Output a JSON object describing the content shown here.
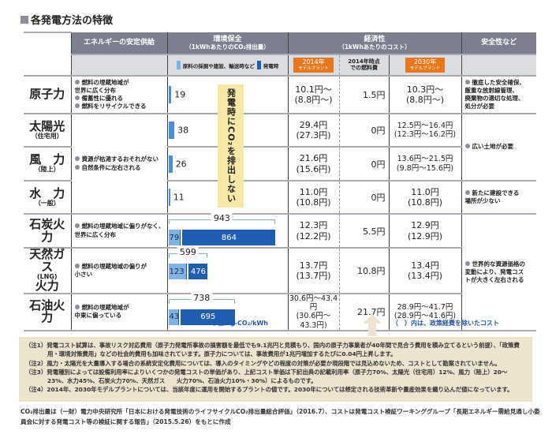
{
  "title": "各発電方法の特徴",
  "headers": {
    "supply": "エネルギーの安定供給",
    "env": "環境保全",
    "env_sub": "（1kWhあたりのCO₂排出量）",
    "econ": "経済性",
    "econ_sub": "（1kWhあたりのコスト）",
    "safety": "安全性など",
    "legend_light": "原料の採掘や建設、輸送時など",
    "legend_dark": "発電時",
    "badge2014": "2014年",
    "badge2014_sub": "モデルプラント",
    "fuel": "2014年時点\nでの燃料費",
    "badge2030": "2030年",
    "badge2030_sub": "モデルプラント"
  },
  "colors": {
    "header": "#7b7f8e",
    "bar_light": "#7fb3e6",
    "bar_dark": "#1f5fb3",
    "badge": "#e8761a",
    "highlight": "#f6e9a6",
    "notes_bg": "#ede3cf"
  },
  "rows": [
    {
      "name": "原子力",
      "sub": "",
      "co2": 19,
      "c2014": "10.1円～",
      "c2014p": "(8.8円～)",
      "fuel": "1.5円",
      "c2030": "10.3円～",
      "c2030p": "(8.8円～)"
    },
    {
      "name": "太陽光",
      "sub": "（住宅用）",
      "co2": 38,
      "c2014": "29.4円",
      "c2014p": "(27.3円)",
      "fuel": "0円",
      "c2030": "12.5円～16.4円",
      "c2030p": "(12.3円～16.2円)"
    },
    {
      "name": "風　力",
      "sub": "（陸上）",
      "co2": 26,
      "c2014": "21.6円",
      "c2014p": "(15.6円)",
      "fuel": "0円",
      "c2030": "13.6円～21.5円",
      "c2030p": "(9.8円～15.6円)"
    },
    {
      "name": "水　力",
      "sub": "（一般）",
      "co2": 11,
      "c2014": "11.0円",
      "c2014p": "(10.8円)",
      "fuel": "0円",
      "c2030": "11.0円",
      "c2030p": "(10.8円)"
    },
    {
      "name": "石炭火力",
      "sub": "",
      "co2_total": 943,
      "co2_other": 79,
      "co2_gen": 864,
      "c2014": "12.3円",
      "c2014p": "(12.2円)",
      "fuel": "5.5円",
      "c2030": "12.9円",
      "c2030p": "(12.9円)"
    },
    {
      "name": "天然ガス",
      "sub": "(LNG)",
      "name2": "火力",
      "co2_total": 599,
      "co2_other": 123,
      "co2_gen": 476,
      "c2014": "13.7円",
      "c2014p": "(13.7円)",
      "fuel": "10.8円",
      "c2030": "13.4円",
      "c2030p": "(13.4円)"
    },
    {
      "name": "石油火力",
      "sub": "",
      "co2_total": 738,
      "co2_other": 43,
      "co2_gen": 695,
      "c2014": "30.6円～43.4円",
      "c2014p": "(30.6円～43.3円)",
      "fuel": "21.7円",
      "c2030": "28.9円～41.7円",
      "c2030p": "(28.9円～41.6円)"
    }
  ],
  "supply": [
    [
      "燃料の埋蔵地域が",
      "世界に広く分布",
      "備蓄性に優れる",
      "燃料をリサイクルできる"
    ],
    [
      "資源が枯渇するおそれがない",
      "自然条件に左右される"
    ],
    [
      "燃料の埋蔵地域に偏りがなく、",
      "世界に広く分布"
    ],
    [
      "燃料の埋蔵地域の偏りが",
      "小さい"
    ],
    [
      "燃料の埋蔵地域が",
      "中東に偏っている"
    ]
  ],
  "safety": [
    [
      "徹底した安全確保、",
      "厳重な放射線管理、",
      "廃棄物の適切な処理、",
      "処分が必要"
    ],
    [
      "広い土地が必要"
    ],
    [
      "新たに建設できる",
      "場所が少ない"
    ],
    [
      "世界的な資源価格の",
      "変動により、発電コス",
      "トが大きく左右される"
    ]
  ],
  "no_co2": "発電時にCO₂を排出しない",
  "unit": "単位：g-CO₂/kWh",
  "paren_note": "（　）内は、政策経費を除いたコスト",
  "notes": [
    "（注1）発電コスト試算は、事故リスク対応費用（原子力発電所事故の損害額を最低でも9.1兆円と見積もり、国内の原子力事業者が40年間で見合う費用を積み立てるという前提）、「政策費用・環境対策費用」などの社会的費用も加味されています。原子力については、事故費用が1兆円増加するたびに0.04円上昇します。",
    "（注2）風力・太陽光を大量導入する場合の系統安定化費用については、導入のタイミングやどの程度の対策が必要か現段階では見込めないため、コストとして勘案されていません。",
    "（注3）発電種別によっては設備利用率によりいくつかの発電コストの単価があり、上記コスト単価は下記出典の記載利用率（原子力70%、太陽光（住宅用）12%、風力（陸上）20～23%、水力45%、石炭火力70%、天然ガス　　火力70%、石油火力10%・30%）によるものです。",
    "（注4）2014年、2030年モデルプラントについては、当該年度に運用を開始するプラントの値です。2030年については想定される技術革新や量産効果を織り込んだ値になっています。"
  ],
  "footer": "CO₂排出量は（一財）電力中央研究所「日本における発電技術のライフサイクルCO₂排出量総合評価」（2016.7）、コストは発電コスト検証ワーキンググループ「長期エネルギー需給見通し小委員会に対する発電コスト等の検証に関する報告」（2015.5.26）をもとに作成"
}
